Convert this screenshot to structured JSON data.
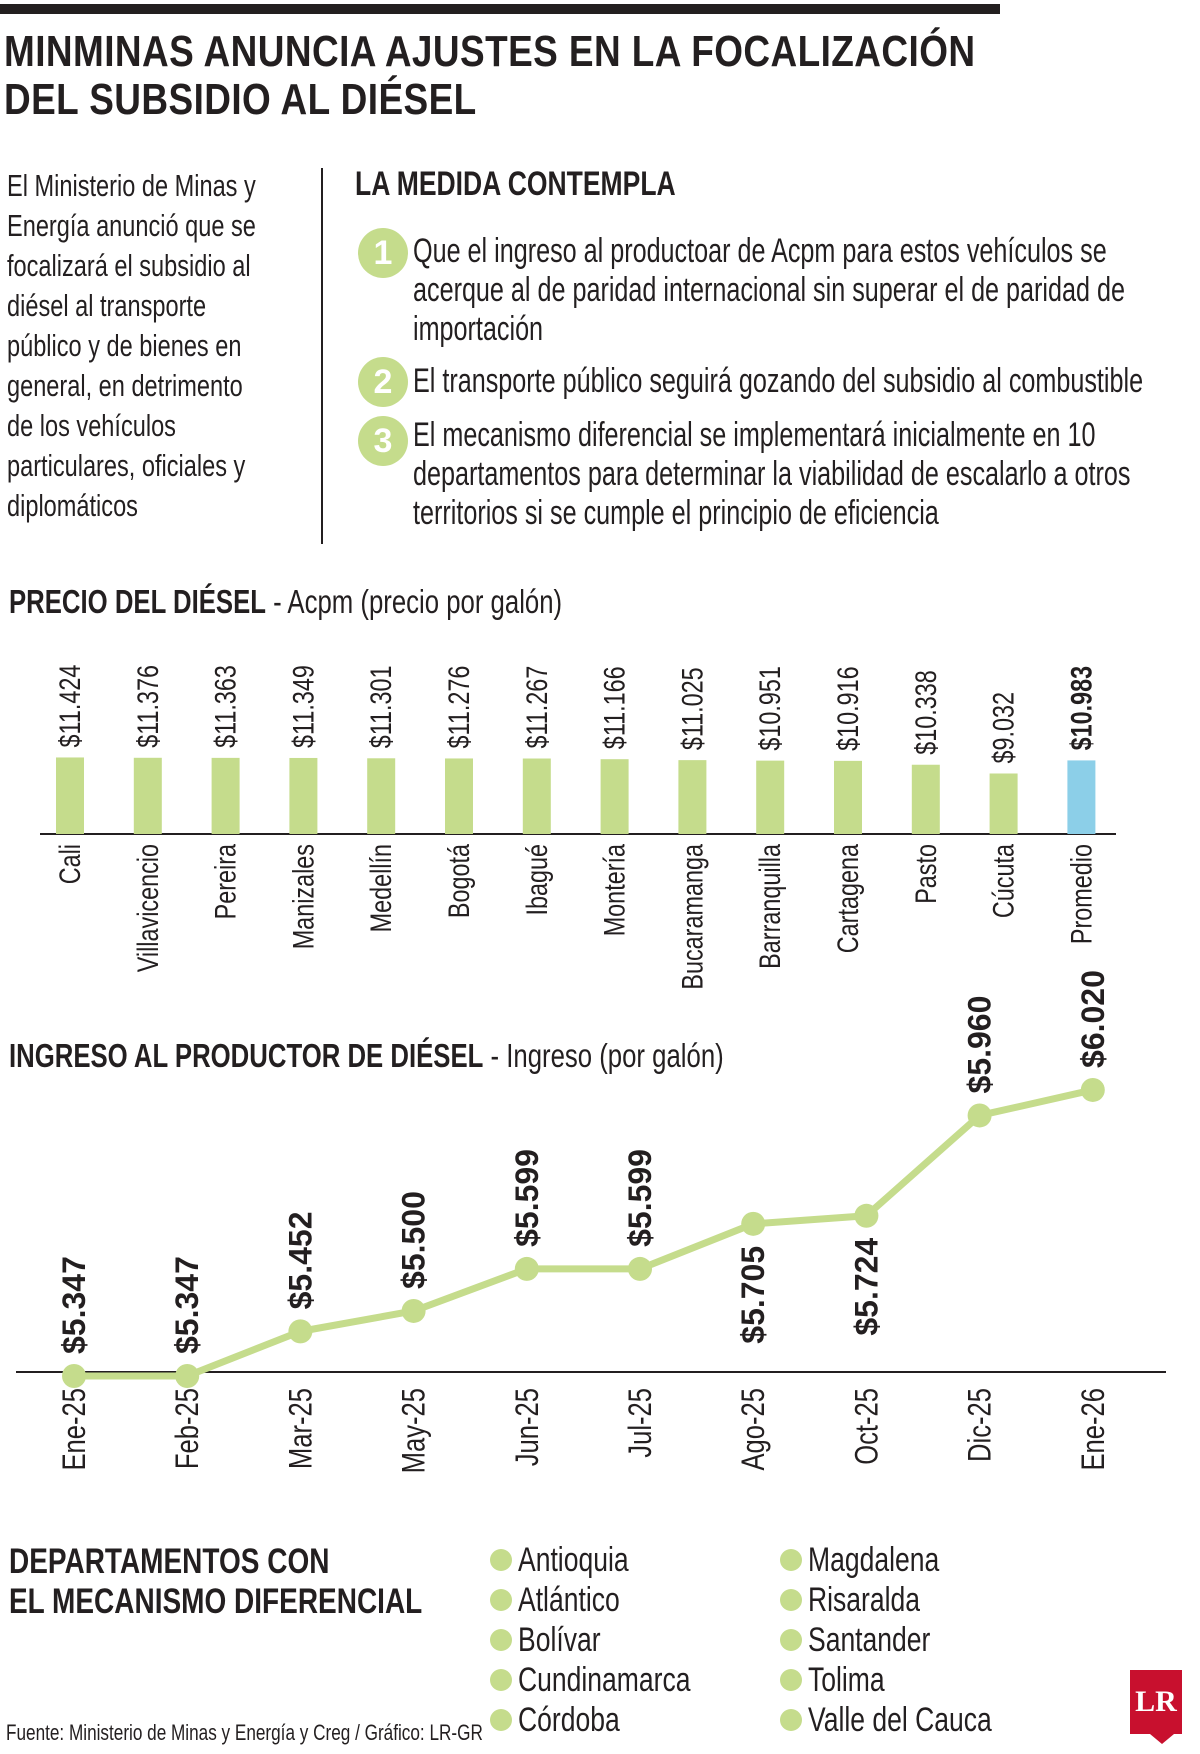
{
  "headline": [
    "MINMINAS ANUNCIA AJUSTES EN LA FOCALIZACIÓN",
    "DEL SUBSIDIO AL DIÉSEL"
  ],
  "intro": [
    "El Ministerio de Minas y",
    "Energía anunció que se",
    "focalizará el subsidio al",
    "diésel al transporte",
    "público y de bienes en",
    "general, en detrimento",
    "de los vehículos",
    "particulares, oficiales y",
    "diplomáticos"
  ],
  "medida": {
    "title": "LA MEDIDA CONTEMPLA",
    "items": [
      {
        "num": "1",
        "lines": [
          "Que el ingreso al productoar de Acpm para estos vehículos se",
          "acerque al de paridad internacional sin superar el de paridad de",
          "importación"
        ]
      },
      {
        "num": "2",
        "lines": [
          "El transporte público seguirá gozando del subsidio al combustible"
        ]
      },
      {
        "num": "3",
        "lines": [
          "El mecanismo diferencial se implementará inicialmente en 10",
          "departamentos para determinar la viabilidad de escalarlo a otros",
          "territorios si se cumple el principio de eficiencia"
        ]
      }
    ]
  },
  "colors": {
    "accent_green": "#c5dc8c",
    "accent_blue": "#8ccfe8",
    "line_green": "#c5dc8c",
    "text": "#231f20",
    "logo_red": "#c8102e"
  },
  "chart_data": [
    {
      "type": "bar",
      "title": "PRECIO DEL DIÉSEL",
      "subtitle": "- Acpm (precio por galón)",
      "categories": [
        "Cali",
        "Villavicencio",
        "Pereira",
        "Manizales",
        "Medellín",
        "Bogotá",
        "Ibagué",
        "Montería",
        "Bucaramanga",
        "Barranquilla",
        "Cartagena",
        "Pasto",
        "Cúcuta",
        "Promedio"
      ],
      "values": [
        11424,
        11376,
        11363,
        11349,
        11301,
        11276,
        11267,
        11166,
        11025,
        10951,
        10916,
        10338,
        9032,
        10983
      ],
      "labels": [
        "$11.424",
        "$11.376",
        "$11.363",
        "$11.349",
        "$11.301",
        "$11.276",
        "$11.267",
        "$11.166",
        "$11.025",
        "$10.951",
        "$10.916",
        "$10.338",
        "$9.032",
        "$10.983"
      ],
      "highlight": "Promedio",
      "ylim": [
        0,
        16000
      ]
    },
    {
      "type": "line",
      "title": "INGRESO AL PRODUCTOR DE DIÉSEL",
      "subtitle": "- Ingreso (por galón)",
      "x": [
        "Ene-25",
        "Feb-25",
        "Mar-25",
        "May-25",
        "Jun-25",
        "Jul-25",
        "Ago-25",
        "Oct-25",
        "Dic-25",
        "Ene-26"
      ],
      "values": [
        5347,
        5347,
        5452,
        5500,
        5599,
        5599,
        5705,
        5724,
        5960,
        6020
      ],
      "labels": [
        "$5.347",
        "$5.347",
        "$5.452",
        "$5.500",
        "$5.599",
        "$5.599",
        "$5.705",
        "$5.724",
        "$5.960",
        "$6.020"
      ],
      "label_position": [
        "above",
        "above",
        "above",
        "above",
        "above",
        "above",
        "below",
        "below",
        "above",
        "above"
      ]
    }
  ],
  "departamentos": {
    "title": [
      "DEPARTAMENTOS CON",
      "EL MECANISMO DIFERENCIAL"
    ],
    "col1": [
      "Antioquia",
      "Atlántico",
      "Bolívar",
      "Cundinamarca",
      "Córdoba"
    ],
    "col2": [
      "Magdalena",
      "Risaralda",
      "Santander",
      "Tolima",
      "Valle del Cauca"
    ]
  },
  "source": "Fuente: Ministerio de Minas y Energía y Creg / Gráfico: LR-GR",
  "logo": "LR"
}
